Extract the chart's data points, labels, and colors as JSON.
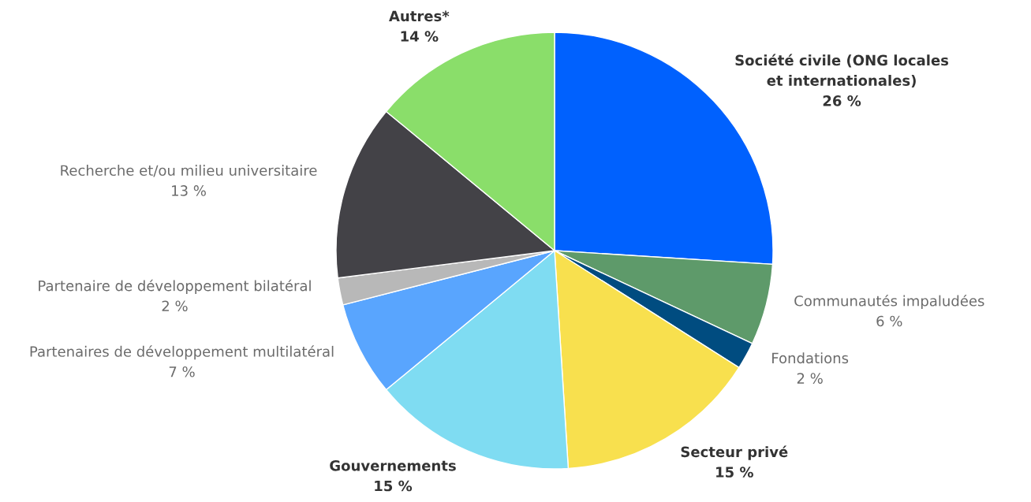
{
  "chart_data": {
    "type": "pie",
    "categories": [
      "Société civile (ONG locales\net internationales)",
      "Communautés impaludées",
      "Fondations",
      "Secteur privé",
      "Gouvernements",
      "Partenaires de développement multilatéral",
      "Partenaire de développement bilatéral",
      "Recherche et/ou milieu universitaire",
      "Autres*"
    ],
    "values": [
      26,
      6,
      2,
      15,
      15,
      7,
      2,
      13,
      14
    ],
    "value_labels": [
      "26 %",
      "6 %",
      "2 %",
      "15 %",
      "15 %",
      "7 %",
      "2 %",
      "13 %",
      "14 %"
    ],
    "colors": [
      "#0061fe",
      "#5e9a6a",
      "#004c80",
      "#f8e04e",
      "#7fdcf2",
      "#59a5fe",
      "#b8b8b8",
      "#434247",
      "#8ade6a"
    ]
  }
}
